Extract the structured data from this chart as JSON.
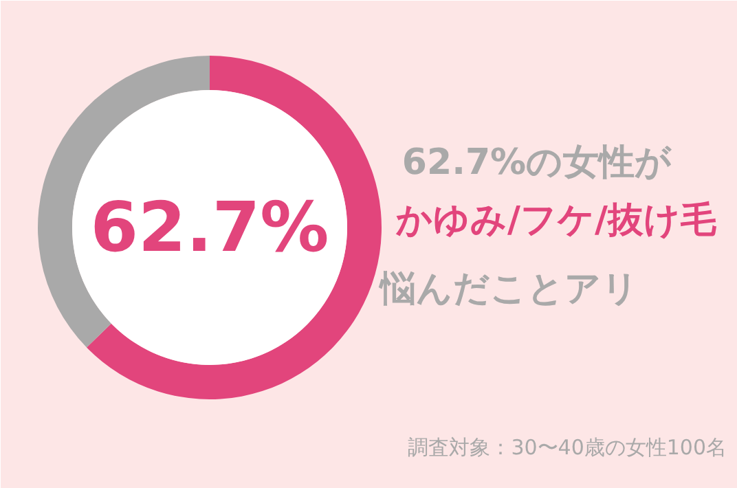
{
  "chart_data": {
    "type": "donut",
    "categories": [
      null,
      null
    ],
    "values": [
      62.7,
      37.3
    ],
    "colors": [
      "#e2457c",
      "#a9a9a9"
    ],
    "value_labels": [
      "62.7%",
      null
    ],
    "annotations": [
      "62.7%の女性が",
      "かゆみ/フケ/抜け毛",
      "悩んだことアリ",
      "調査対象：30〜40歳の女性100名"
    ]
  }
}
